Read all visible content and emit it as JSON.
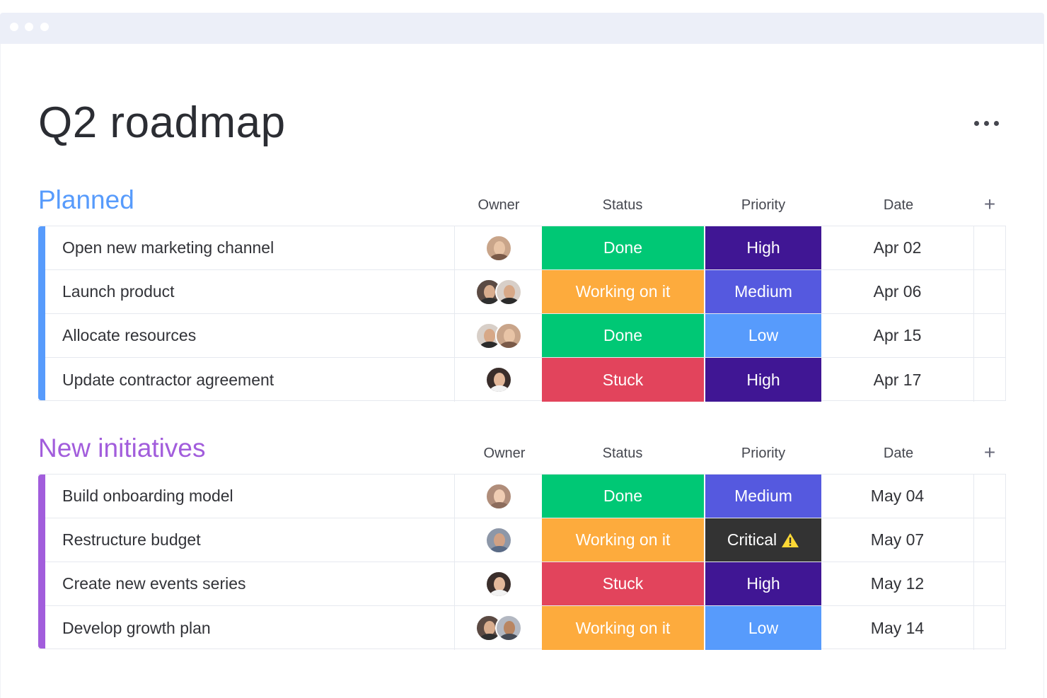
{
  "board": {
    "title": "Q2 roadmap"
  },
  "columns": {
    "owner": "Owner",
    "status": "Status",
    "priority": "Priority",
    "date": "Date",
    "add": "+"
  },
  "colors": {
    "done": "#00c875",
    "working": "#fdab3d",
    "stuck": "#e2445c",
    "high": "#401694",
    "medium": "#5559df",
    "low": "#579bfc",
    "critical": "#333333",
    "planned_accent": "#579bfc",
    "initiatives_accent": "#a25ddc"
  },
  "groups": [
    {
      "title": "Planned",
      "color": "#579bfc",
      "rows": [
        {
          "name": "Open new marketing channel",
          "owners": [
            "woman-1"
          ],
          "status": "Done",
          "status_color": "#00c875",
          "priority": "High",
          "priority_color": "#401694",
          "date": "Apr 02"
        },
        {
          "name": "Launch product",
          "owners": [
            "woman-2",
            "man-1"
          ],
          "status": "Working on it",
          "status_color": "#fdab3d",
          "priority": "Medium",
          "priority_color": "#5559df",
          "date": "Apr 06"
        },
        {
          "name": "Allocate resources",
          "owners": [
            "man-1",
            "woman-1"
          ],
          "status": "Done",
          "status_color": "#00c875",
          "priority": "Low",
          "priority_color": "#579bfc",
          "date": "Apr 15"
        },
        {
          "name": "Update contractor agreement",
          "owners": [
            "woman-3"
          ],
          "status": "Stuck",
          "status_color": "#e2445c",
          "priority": "High",
          "priority_color": "#401694",
          "date": "Apr 17"
        }
      ]
    },
    {
      "title": "New initiatives",
      "color": "#a25ddc",
      "rows": [
        {
          "name": "Build onboarding model",
          "owners": [
            "woman-4"
          ],
          "status": "Done",
          "status_color": "#00c875",
          "priority": "Medium",
          "priority_color": "#5559df",
          "date": "May 04"
        },
        {
          "name": "Restructure budget",
          "owners": [
            "man-2"
          ],
          "status": "Working on it",
          "status_color": "#fdab3d",
          "priority": "Critical",
          "priority_color": "#333333",
          "priority_icon": "warning-icon",
          "date": "May 07"
        },
        {
          "name": "Create new events series",
          "owners": [
            "woman-3"
          ],
          "status": "Stuck",
          "status_color": "#e2445c",
          "priority": "High",
          "priority_color": "#401694",
          "date": "May 12"
        },
        {
          "name": "Develop growth plan",
          "owners": [
            "woman-2",
            "man-3"
          ],
          "status": "Working on it",
          "status_color": "#fdab3d",
          "priority": "Low",
          "priority_color": "#579bfc",
          "date": "May 14"
        }
      ]
    }
  ]
}
